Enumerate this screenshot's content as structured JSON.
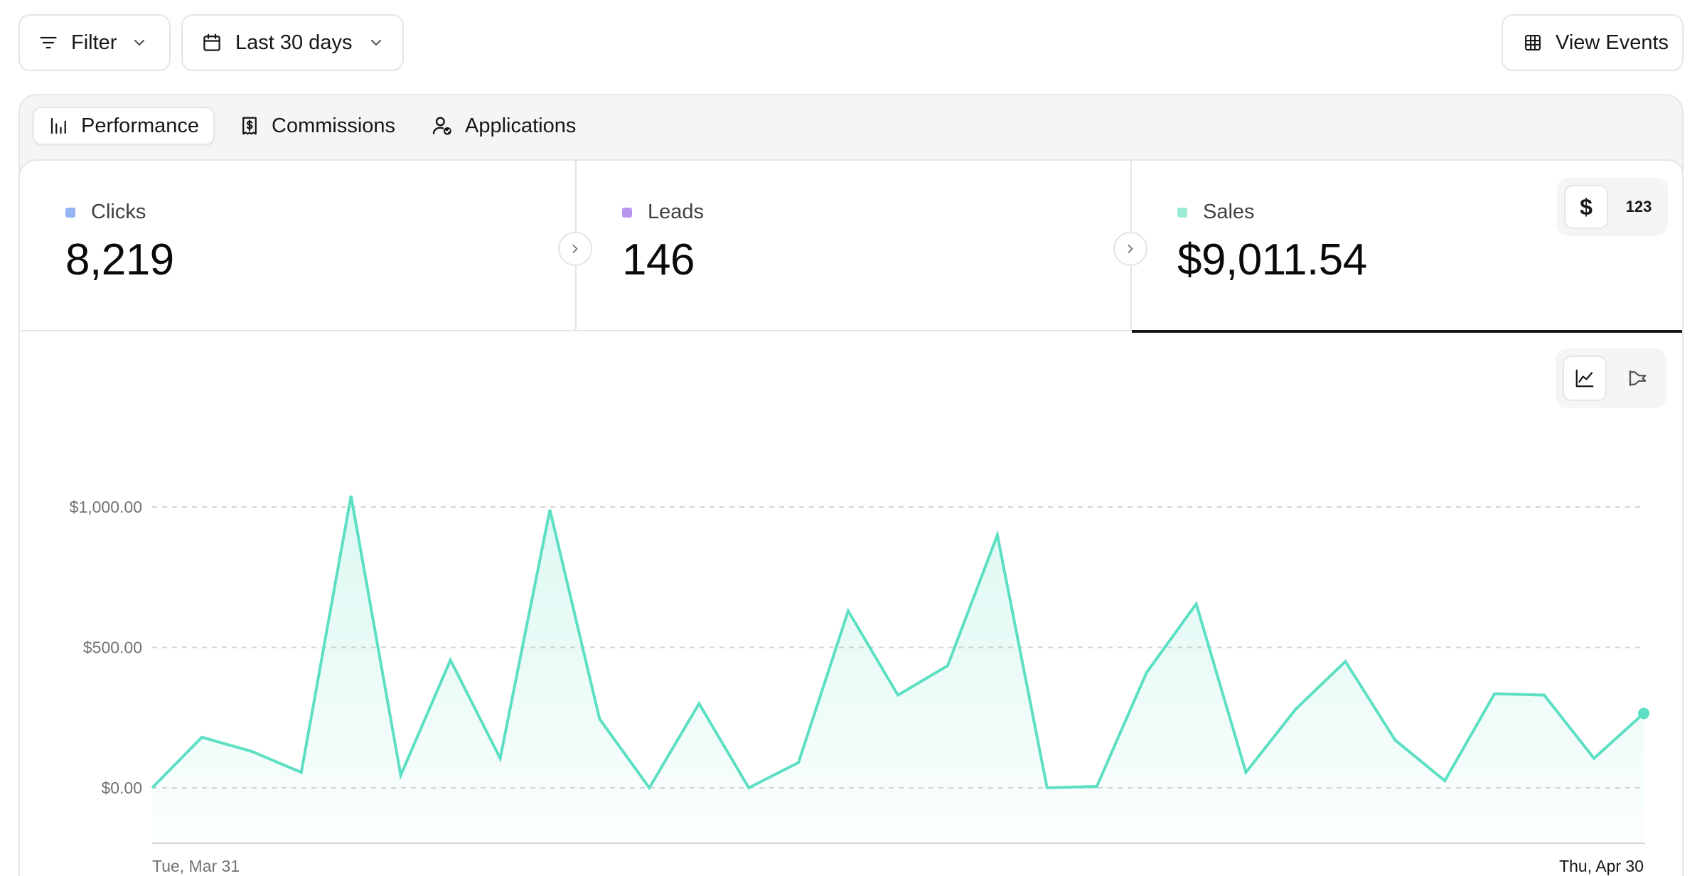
{
  "toolbar": {
    "filter_label": "Filter",
    "date_label": "Last 30 days",
    "view_events_label": "View Events"
  },
  "tabs": [
    {
      "label": "Performance",
      "active": true,
      "icon": "bar-chart-icon"
    },
    {
      "label": "Commissions",
      "active": false,
      "icon": "receipt-dollar-icon"
    },
    {
      "label": "Applications",
      "active": false,
      "icon": "user-check-icon"
    }
  ],
  "metrics": {
    "clicks": {
      "label": "Clicks",
      "value": "8,219",
      "color": "#93b4f0"
    },
    "leads": {
      "label": "Leads",
      "value": "146",
      "color": "#b894ee"
    },
    "sales": {
      "label": "Sales",
      "value": "$9,011.54",
      "color": "#99ecd6",
      "selected": true
    }
  },
  "unit_toggle": {
    "currency": "$",
    "count": "123",
    "selected": "currency"
  },
  "chart_view_toggle": {
    "options": [
      "line-chart-icon",
      "funnel-icon"
    ],
    "selected": "line-chart-icon"
  },
  "chart_data": {
    "type": "area",
    "title": "",
    "xlabel": "",
    "ylabel": "",
    "color": "#5ddfc4",
    "x_tick_labels": [
      "Tue, Mar 31",
      "Thu, Apr 30"
    ],
    "y_tick_labels": [
      "$1,000.00",
      "$500.00",
      "$0.00"
    ],
    "y_ticks": [
      1000,
      500,
      0
    ],
    "ylim": [
      -200,
      1080
    ],
    "grid": "horizontal-dashed",
    "series": [
      {
        "values": [
          0,
          180,
          130,
          55,
          1040,
          45,
          455,
          105,
          990,
          245,
          0,
          300,
          0,
          90,
          630,
          330,
          435,
          900,
          0,
          5,
          410,
          655,
          55,
          280,
          450,
          170,
          25,
          335,
          330,
          105,
          265
        ]
      }
    ]
  }
}
